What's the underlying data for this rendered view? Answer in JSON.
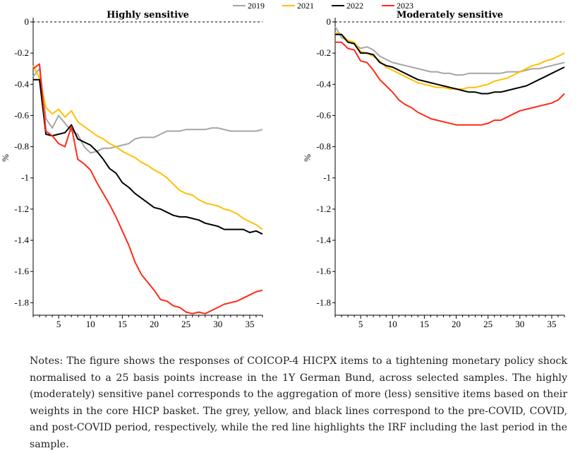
{
  "legend": [
    {
      "name": "2019",
      "color": "#a6a6a6"
    },
    {
      "name": "2021",
      "color": "#ffc000"
    },
    {
      "name": "2022",
      "color": "#000000"
    },
    {
      "name": "2023",
      "color": "#ff2a1a"
    }
  ],
  "chart_data": [
    {
      "type": "line",
      "title": "Highly sensitive",
      "ylabel": "%",
      "xlabel": "",
      "xlim": [
        1,
        37
      ],
      "ylim": [
        -1.88,
        0
      ],
      "xticks": [
        5,
        10,
        15,
        20,
        25,
        30,
        35
      ],
      "yticks": [
        0,
        -0.2,
        -0.4,
        -0.6,
        -0.8,
        -1,
        -1.2,
        -1.4,
        -1.6,
        -1.8
      ],
      "ytick_labels": [
        "0",
        "-0.2",
        "-0.4",
        "-0.6",
        "-0.8",
        "-1",
        "-1.2",
        "-1.4",
        "-1.6",
        "-1.8"
      ],
      "zero_line": "dashed",
      "grid": false,
      "x": [
        1,
        2,
        3,
        4,
        5,
        6,
        7,
        8,
        9,
        10,
        11,
        12,
        13,
        14,
        15,
        16,
        17,
        18,
        19,
        20,
        21,
        22,
        23,
        24,
        25,
        26,
        27,
        28,
        29,
        30,
        31,
        32,
        33,
        34,
        35,
        36,
        37
      ],
      "series": [
        {
          "name": "2019",
          "color": "#a6a6a6",
          "values": [
            -0.35,
            -0.3,
            -0.62,
            -0.68,
            -0.6,
            -0.65,
            -0.7,
            -0.72,
            -0.8,
            -0.84,
            -0.83,
            -0.81,
            -0.81,
            -0.8,
            -0.79,
            -0.78,
            -0.75,
            -0.74,
            -0.74,
            -0.74,
            -0.72,
            -0.7,
            -0.7,
            -0.7,
            -0.69,
            -0.69,
            -0.69,
            -0.69,
            -0.68,
            -0.68,
            -0.69,
            -0.7,
            -0.7,
            -0.7,
            -0.7,
            -0.7,
            -0.69
          ]
        },
        {
          "name": "2021",
          "color": "#ffc000",
          "values": [
            -0.28,
            -0.36,
            -0.55,
            -0.59,
            -0.56,
            -0.61,
            -0.57,
            -0.64,
            -0.67,
            -0.7,
            -0.73,
            -0.75,
            -0.78,
            -0.8,
            -0.83,
            -0.85,
            -0.87,
            -0.9,
            -0.92,
            -0.95,
            -0.97,
            -1.0,
            -1.04,
            -1.08,
            -1.1,
            -1.11,
            -1.14,
            -1.16,
            -1.17,
            -1.18,
            -1.2,
            -1.21,
            -1.23,
            -1.26,
            -1.28,
            -1.3,
            -1.33
          ]
        },
        {
          "name": "2022",
          "color": "#000000",
          "values": [
            -0.37,
            -0.37,
            -0.72,
            -0.73,
            -0.72,
            -0.71,
            -0.66,
            -0.75,
            -0.77,
            -0.79,
            -0.83,
            -0.88,
            -0.94,
            -0.97,
            -1.03,
            -1.06,
            -1.1,
            -1.13,
            -1.16,
            -1.19,
            -1.2,
            -1.22,
            -1.24,
            -1.25,
            -1.25,
            -1.26,
            -1.27,
            -1.29,
            -1.3,
            -1.31,
            -1.33,
            -1.33,
            -1.33,
            -1.33,
            -1.35,
            -1.34,
            -1.36
          ]
        },
        {
          "name": "2023",
          "color": "#ff2a1a",
          "values": [
            -0.3,
            -0.27,
            -0.7,
            -0.73,
            -0.78,
            -0.8,
            -0.67,
            -0.88,
            -0.91,
            -0.95,
            -1.03,
            -1.1,
            -1.17,
            -1.25,
            -1.34,
            -1.43,
            -1.54,
            -1.62,
            -1.67,
            -1.72,
            -1.78,
            -1.79,
            -1.82,
            -1.83,
            -1.86,
            -1.87,
            -1.86,
            -1.87,
            -1.85,
            -1.83,
            -1.81,
            -1.8,
            -1.79,
            -1.77,
            -1.75,
            -1.73,
            -1.72
          ]
        }
      ]
    },
    {
      "type": "line",
      "title": "Moderately sensitive",
      "ylabel": "%",
      "xlabel": "",
      "xlim": [
        1,
        37
      ],
      "ylim": [
        -1.88,
        0
      ],
      "xticks": [
        5,
        10,
        15,
        20,
        25,
        30,
        35
      ],
      "yticks": [
        0,
        -0.2,
        -0.4,
        -0.6,
        -0.8,
        -1,
        -1.2,
        -1.4,
        -1.6,
        -1.8
      ],
      "ytick_labels": [
        "0",
        "-0.2",
        "-0.4",
        "-0.6",
        "-0.8",
        "-1",
        "-1.2",
        "-1.4",
        "-1.6",
        "-1.8"
      ],
      "zero_line": "dashed",
      "grid": false,
      "x": [
        1,
        2,
        3,
        4,
        5,
        6,
        7,
        8,
        9,
        10,
        11,
        12,
        13,
        14,
        15,
        16,
        17,
        18,
        19,
        20,
        21,
        22,
        23,
        24,
        25,
        26,
        27,
        28,
        29,
        30,
        31,
        32,
        33,
        34,
        35,
        36,
        37
      ],
      "series": [
        {
          "name": "2019",
          "color": "#a6a6a6",
          "values": [
            -0.03,
            -0.1,
            -0.12,
            -0.14,
            -0.17,
            -0.16,
            -0.18,
            -0.22,
            -0.24,
            -0.26,
            -0.27,
            -0.28,
            -0.29,
            -0.3,
            -0.31,
            -0.32,
            -0.32,
            -0.33,
            -0.33,
            -0.34,
            -0.34,
            -0.33,
            -0.33,
            -0.33,
            -0.33,
            -0.33,
            -0.33,
            -0.32,
            -0.32,
            -0.32,
            -0.31,
            -0.3,
            -0.3,
            -0.29,
            -0.28,
            -0.27,
            -0.26
          ]
        },
        {
          "name": "2021",
          "color": "#ffc000",
          "values": [
            -0.07,
            -0.08,
            -0.12,
            -0.13,
            -0.19,
            -0.2,
            -0.22,
            -0.25,
            -0.29,
            -0.31,
            -0.33,
            -0.35,
            -0.37,
            -0.39,
            -0.4,
            -0.41,
            -0.42,
            -0.42,
            -0.43,
            -0.43,
            -0.43,
            -0.42,
            -0.42,
            -0.41,
            -0.4,
            -0.38,
            -0.37,
            -0.36,
            -0.34,
            -0.32,
            -0.3,
            -0.28,
            -0.27,
            -0.25,
            -0.24,
            -0.22,
            -0.2
          ]
        },
        {
          "name": "2022",
          "color": "#000000",
          "values": [
            -0.08,
            -0.08,
            -0.13,
            -0.14,
            -0.2,
            -0.2,
            -0.21,
            -0.26,
            -0.28,
            -0.29,
            -0.31,
            -0.33,
            -0.35,
            -0.37,
            -0.38,
            -0.39,
            -0.4,
            -0.41,
            -0.42,
            -0.43,
            -0.44,
            -0.45,
            -0.45,
            -0.46,
            -0.46,
            -0.45,
            -0.45,
            -0.44,
            -0.43,
            -0.42,
            -0.41,
            -0.39,
            -0.37,
            -0.35,
            -0.33,
            -0.31,
            -0.29
          ]
        },
        {
          "name": "2023",
          "color": "#ff2a1a",
          "values": [
            -0.13,
            -0.13,
            -0.17,
            -0.18,
            -0.25,
            -0.26,
            -0.31,
            -0.37,
            -0.41,
            -0.45,
            -0.5,
            -0.53,
            -0.55,
            -0.58,
            -0.6,
            -0.62,
            -0.63,
            -0.64,
            -0.65,
            -0.66,
            -0.66,
            -0.66,
            -0.66,
            -0.66,
            -0.65,
            -0.63,
            -0.63,
            -0.61,
            -0.59,
            -0.57,
            -0.56,
            -0.55,
            -0.54,
            -0.53,
            -0.52,
            -0.5,
            -0.46
          ]
        }
      ]
    }
  ],
  "notes": "Notes: The figure shows the responses of COICOP-4 HICPX items to a tightening monetary policy shock normalised to a 25 basis points increase in the 1Y German Bund, across selected samples. The highly (moderately) sensitive panel corresponds to the aggregation of more (less) sensitive items based on their weights in the core HICP basket. The grey, yellow, and black lines correspond to the pre-COVID, COVID, and post-COVID period, respectively, while the red line highlights the IRF including the last period in the sample."
}
